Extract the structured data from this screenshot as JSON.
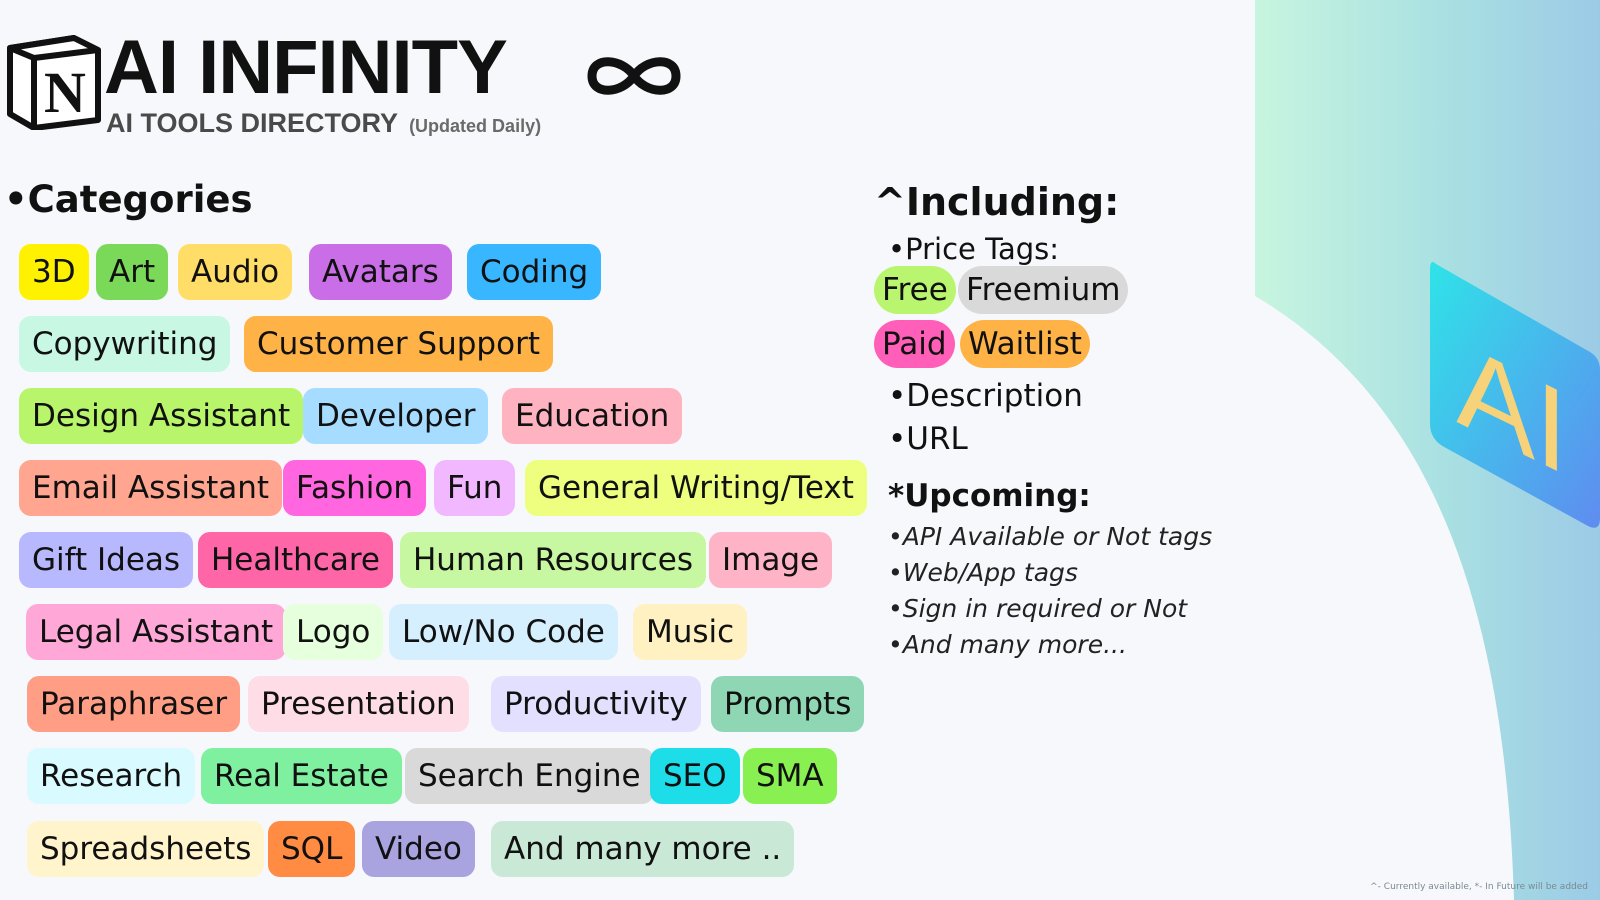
{
  "header": {
    "title": "AI INFINITY",
    "subtitle": "AI TOOLS DIRECTORY",
    "subtitle_note": "(Updated Daily)",
    "logo_letter": "N"
  },
  "categories": {
    "heading": "•Categories",
    "tags": [
      {
        "label": "3D",
        "color": "#fff200"
      },
      {
        "label": "Art",
        "color": "#7bd95a"
      },
      {
        "label": "Audio",
        "color": "#ffdd66"
      },
      {
        "label": "Avatars",
        "color": "#c96ee6"
      },
      {
        "label": "Coding",
        "color": "#38b6ff"
      },
      {
        "label": "Copywriting",
        "color": "#c8f7e4"
      },
      {
        "label": "Customer Support",
        "color": "#ffb347"
      },
      {
        "label": "Design Assistant",
        "color": "#b8f56a"
      },
      {
        "label": "Developer",
        "color": "#a6dcff"
      },
      {
        "label": "Education",
        "color": "#ffb3c1"
      },
      {
        "label": "Email Assistant",
        "color": "#ffa590"
      },
      {
        "label": "Fashion",
        "color": "#ff66e0"
      },
      {
        "label": "Fun",
        "color": "#f2b8ff"
      },
      {
        "label": "General Writing/Text",
        "color": "#eeff80"
      },
      {
        "label": "Gift Ideas",
        "color": "#b8b8ff"
      },
      {
        "label": "Healthcare",
        "color": "#ff66a8"
      },
      {
        "label": "Human Resources",
        "color": "#c7f7a0"
      },
      {
        "label": "Image",
        "color": "#ffb3c6"
      },
      {
        "label": "Legal Assistant",
        "color": "#ffa8d8"
      },
      {
        "label": "Logo",
        "color": "#e6ffdd"
      },
      {
        "label": "Low/No Code",
        "color": "#d6efff"
      },
      {
        "label": "Music",
        "color": "#fff1c2"
      },
      {
        "label": "Paraphraser",
        "color": "#ff9e85"
      },
      {
        "label": "Presentation",
        "color": "#ffdde6"
      },
      {
        "label": "Productivity",
        "color": "#e3e0ff"
      },
      {
        "label": "Prompts",
        "color": "#8fd6b4"
      },
      {
        "label": "Research",
        "color": "#d9fbff"
      },
      {
        "label": "Real Estate",
        "color": "#7ff0a0"
      },
      {
        "label": "Search Engine",
        "color": "#d9d9d9"
      },
      {
        "label": "SEO",
        "color": "#1ddde8"
      },
      {
        "label": "SMA",
        "color": "#88f050"
      },
      {
        "label": "Spreadsheets",
        "color": "#fff4cc"
      },
      {
        "label": "SQL",
        "color": "#ff8c42"
      },
      {
        "label": "Video",
        "color": "#a9a4e0"
      },
      {
        "label": "And many more ..",
        "color": "#c9e8d6"
      }
    ]
  },
  "including": {
    "heading": "^Including:",
    "price_tags_label": "•Price Tags:",
    "price_tags": [
      {
        "label": "Free",
        "color": "#b9f56e"
      },
      {
        "label": "Freemium",
        "color": "#d9d9d9"
      },
      {
        "label": "Paid",
        "color": "#ff5fb8"
      },
      {
        "label": "Waitlist",
        "color": "#ffb347"
      }
    ],
    "description": "•Description",
    "url": "•URL"
  },
  "upcoming": {
    "heading": "*Upcoming:",
    "items": [
      "•API Available or Not tags",
      "•Web/App tags",
      "•Sign in required or Not",
      "•And many more..."
    ]
  },
  "badge": {
    "text": "AI"
  },
  "footnote": "^- Currently available, *- In Future will be added"
}
